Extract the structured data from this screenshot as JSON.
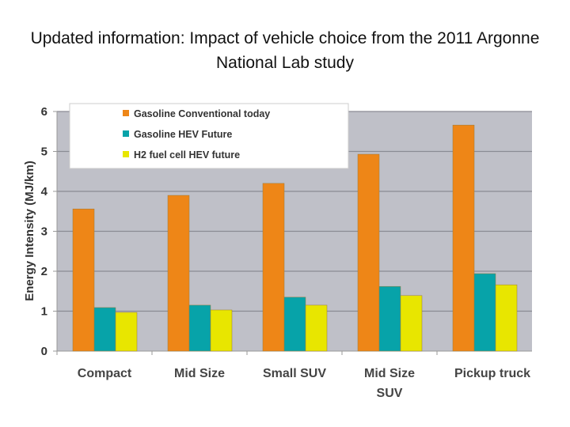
{
  "title": "Updated information: Impact of vehicle choice from the 2011 Argonne National Lab study",
  "chart_data": {
    "type": "bar",
    "title": "Updated information: Impact of vehicle choice from the 2011 Argonne National Lab study",
    "xlabel": "",
    "ylabel": "Energy Intensity (MJ/km)",
    "ylim": [
      0,
      6
    ],
    "yticks": [
      "0",
      "1",
      "2",
      "3",
      "4",
      "5",
      "6"
    ],
    "grid": true,
    "legend": "top-left",
    "categories": [
      "Compact",
      "Mid Size",
      "Small SUV",
      "Mid Size SUV",
      "Pickup truck"
    ],
    "series": [
      {
        "name": "Gasoline Conventional today",
        "color": "#ee8617",
        "values": [
          3.56,
          3.9,
          4.2,
          4.93,
          5.66
        ]
      },
      {
        "name": "Gasoline HEV Future",
        "color": "#07a3a9",
        "values": [
          1.09,
          1.15,
          1.35,
          1.62,
          1.94
        ]
      },
      {
        "name": "H2 fuel cell HEV future",
        "color": "#e8e600",
        "values": [
          0.97,
          1.03,
          1.15,
          1.39,
          1.66
        ]
      }
    ],
    "plot_background": "#bfc0c8"
  }
}
